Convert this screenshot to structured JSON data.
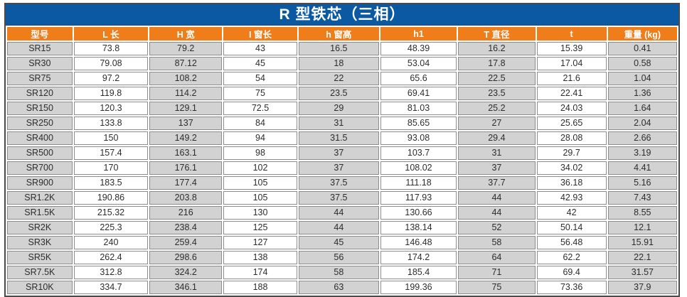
{
  "table": {
    "title": "R 型铁芯（三相）",
    "colors": {
      "title_bg": "#0a59a2",
      "header_bg": "#ef7d1a",
      "header_text": "#ffffff",
      "cell_gray": "#d2d2d2",
      "cell_white": "#ffffff",
      "cell_border": "#8c8c8c",
      "cell_text": "#2d2d2d",
      "outer_border": "#4a4a4a"
    },
    "columns": [
      "型号",
      "L 长",
      "H 宽",
      "I 窗长",
      "h 窗高",
      "h1",
      "T 直径",
      "t",
      "重量 (kg)"
    ],
    "rows": [
      [
        "SR15",
        "73.8",
        "79.2",
        "43",
        "16.5",
        "48.39",
        "16.2",
        "15.39",
        "0.41"
      ],
      [
        "SR30",
        "79.08",
        "87.12",
        "45",
        "18",
        "53.04",
        "17.8",
        "17.04",
        "0.58"
      ],
      [
        "SR75",
        "97.2",
        "108.2",
        "54",
        "22",
        "65.6",
        "22.5",
        "21.6",
        "1.04"
      ],
      [
        "SR120",
        "119.8",
        "114.2",
        "75",
        "23.5",
        "69.41",
        "23.5",
        "22.41",
        "1.36"
      ],
      [
        "SR150",
        "120.3",
        "129.1",
        "72.5",
        "29",
        "81.03",
        "25.2",
        "24.03",
        "1.64"
      ],
      [
        "SR250",
        "133.8",
        "137",
        "84",
        "31",
        "85.65",
        "27",
        "25.65",
        "2.04"
      ],
      [
        "SR400",
        "150",
        "149.2",
        "94",
        "31.5",
        "93.08",
        "29.4",
        "28.08",
        "2.66"
      ],
      [
        "SR500",
        "157.4",
        "163.1",
        "98",
        "37",
        "103.7",
        "31",
        "29.7",
        "3.19"
      ],
      [
        "SR700",
        "170",
        "176.1",
        "102",
        "37",
        "108.02",
        "37",
        "34.02",
        "4.41"
      ],
      [
        "SR900",
        "183.5",
        "177.4",
        "105",
        "37.5",
        "111.18",
        "37.7",
        "36.18",
        "5.16"
      ],
      [
        "SR1.2K",
        "190.86",
        "203.8",
        "105",
        "37.5",
        "117.93",
        "44",
        "42.93",
        "7.43"
      ],
      [
        "SR1.5K",
        "215.32",
        "216",
        "130",
        "44",
        "130.66",
        "44",
        "42",
        "8.55"
      ],
      [
        "SR2K",
        "225.3",
        "238.4",
        "125",
        "44",
        "138.14",
        "52",
        "50.14",
        "12.1"
      ],
      [
        "SR3K",
        "240",
        "259.4",
        "127",
        "45",
        "146.48",
        "58",
        "56.48",
        "15.91"
      ],
      [
        "SR5K",
        "262.4",
        "298.6",
        "138",
        "56",
        "174.2",
        "64",
        "62.2",
        "22.1"
      ],
      [
        "SR7.5K",
        "312.8",
        "324.2",
        "174",
        "58",
        "185.4",
        "71",
        "69.4",
        "31.57"
      ],
      [
        "SR10K",
        "334.7",
        "346.1",
        "188",
        "63",
        "199.36",
        "75",
        "73.36",
        "37.9"
      ]
    ]
  }
}
